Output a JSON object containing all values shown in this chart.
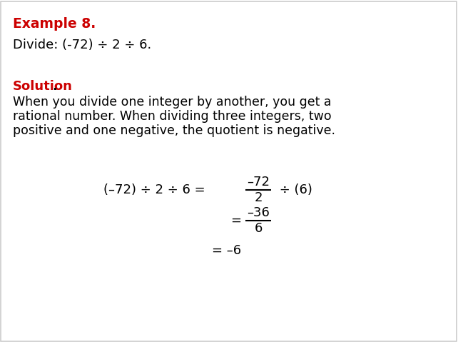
{
  "background_color": "#ffffff",
  "border_color": "#cccccc",
  "title_text": "Example 8.",
  "title_color": "#cc0000",
  "title_fontsize": 13.5,
  "problem_text": "Divide: (-72) ÷ 2 ÷ 6.",
  "problem_fontsize": 13,
  "problem_color": "#000000",
  "solution_label": "Solution",
  "solution_dot": ".",
  "solution_color": "#cc0000",
  "solution_fontsize": 13,
  "explanation_lines": [
    "When you divide one integer by another, you get a",
    "rational number. When dividing three integers, two",
    "positive and one negative, the quotient is negative."
  ],
  "explanation_fontsize": 12.5,
  "explanation_color": "#000000",
  "eq_line1_left": "(–72) ÷ 2 ÷ 6 =",
  "eq_line1_num": "–72",
  "eq_line1_den": "2",
  "eq_line1_right": "÷ (6)",
  "eq_line2_eq": "=",
  "eq_line2_num": "–36",
  "eq_line2_den": "6",
  "eq_line3": "= –6",
  "eq_fontsize": 13,
  "eq_color": "#000000"
}
